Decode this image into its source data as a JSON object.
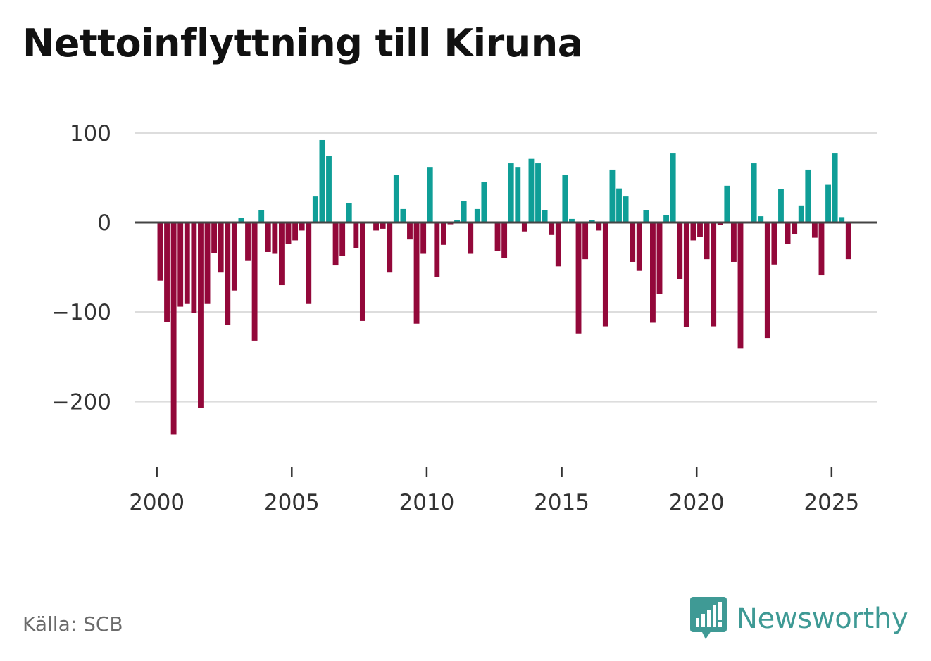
{
  "title": "Nettoinflyttning till Kiruna",
  "source": "Källa: SCB",
  "brand": {
    "name": "Newsworthy",
    "icon": "newsworthy-logo-icon"
  },
  "colors": {
    "positive": "#0f9e97",
    "negative": "#93083a",
    "zero_line": "#444444",
    "grid": "#dddddd",
    "brand": "#3f9a95"
  },
  "chart_data": {
    "type": "bar",
    "title": "Nettoinflyttning till Kiruna",
    "xlabel": "",
    "ylabel": "",
    "ylim": [
      -260,
      110
    ],
    "xlim": [
      1999.2,
      2026.7
    ],
    "grid": true,
    "y_ticks": [
      100,
      0,
      -100,
      -200
    ],
    "y_tick_labels": [
      "100",
      "0",
      "−100",
      "−200"
    ],
    "x_ticks": [
      2000,
      2005,
      2010,
      2015,
      2020,
      2025
    ],
    "x_tick_labels": [
      "2000",
      "2005",
      "2010",
      "2015",
      "2020",
      "2025"
    ],
    "frequency": "quarterly",
    "start": "2000-Q1",
    "values": [
      -65,
      -111,
      -237,
      -94,
      -91,
      -101,
      -207,
      -91,
      -34,
      -56,
      -114,
      -76,
      5,
      -43,
      -132,
      14,
      -33,
      -35,
      -70,
      -24,
      -20,
      -9,
      -91,
      29,
      92,
      74,
      -48,
      -37,
      22,
      -29,
      -110,
      0,
      -9,
      -7,
      -56,
      53,
      15,
      -19,
      -113,
      -35,
      62,
      -61,
      -25,
      -2,
      3,
      24,
      -35,
      15,
      45,
      0,
      -32,
      -40,
      66,
      62,
      -10,
      71,
      66,
      14,
      -14,
      -49,
      53,
      4,
      -124,
      -41,
      3,
      -9,
      -116,
      59,
      38,
      29,
      -44,
      -54,
      14,
      -112,
      -80,
      8,
      77,
      -63,
      -117,
      -20,
      -16,
      -41,
      -116,
      -3,
      41,
      -44,
      -141,
      0,
      66,
      7,
      -129,
      -47,
      37,
      -24,
      -13,
      19,
      59,
      -17,
      -59,
      42,
      77,
      6,
      -41
    ]
  }
}
